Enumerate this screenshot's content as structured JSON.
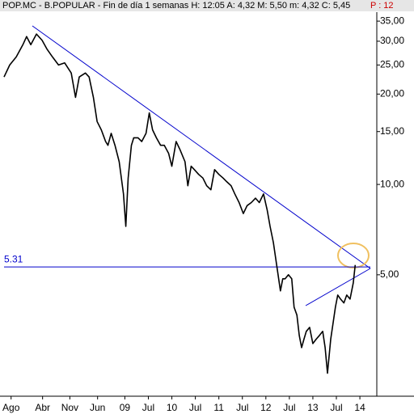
{
  "chart_data": {
    "type": "line",
    "title": "POP.MC - B.POPULAR - Fin de día 1 semanas  H: 12:05  A: 4,32  M: 5,50  m: 4,32  C: 5,45",
    "subtitle": "P : 12",
    "color": "#000000",
    "log_scale": true,
    "x": [
      2006.43,
      2006.55,
      2006.69,
      2006.83,
      2006.91,
      2007.0,
      2007.12,
      2007.24,
      2007.34,
      2007.46,
      2007.59,
      2007.72,
      2007.86,
      2007.95,
      2008.03,
      2008.16,
      2008.24,
      2008.33,
      2008.41,
      2008.5,
      2008.59,
      2008.64,
      2008.71,
      2008.79,
      2008.88,
      2008.97,
      2009.02,
      2009.07,
      2009.14,
      2009.19,
      2009.28,
      2009.36,
      2009.45,
      2009.52,
      2009.59,
      2009.67,
      2009.76,
      2009.84,
      2009.93,
      2010.0,
      2010.09,
      2010.17,
      2010.28,
      2010.34,
      2010.41,
      2010.48,
      2010.57,
      2010.66,
      2010.74,
      2010.83,
      2010.91,
      2011.0,
      2011.09,
      2011.17,
      2011.26,
      2011.34,
      2011.43,
      2011.52,
      2011.6,
      2011.69,
      2011.78,
      2011.86,
      2011.95,
      2012.03,
      2012.09,
      2012.16,
      2012.21,
      2012.26,
      2012.31,
      2012.36,
      2012.41,
      2012.48,
      2012.55,
      2012.6,
      2012.66,
      2012.71,
      2012.76,
      2012.81,
      2012.86,
      2012.93,
      2013.0,
      2013.07,
      2013.14,
      2013.21,
      2013.26,
      2013.31,
      2013.38,
      2013.43,
      2013.48,
      2013.53,
      2013.59,
      2013.66,
      2013.72,
      2013.79,
      2013.86,
      2013.9
    ],
    "values": [
      22.8,
      25.0,
      26.6,
      29.2,
      31.1,
      29.2,
      31.7,
      30.2,
      28.3,
      26.6,
      25.0,
      25.4,
      23.5,
      19.5,
      22.8,
      23.5,
      22.8,
      19.5,
      16.2,
      15.2,
      13.9,
      13.5,
      14.8,
      13.5,
      11.9,
      9.3,
      7.25,
      10.5,
      13.5,
      14.3,
      14.3,
      13.9,
      14.8,
      17.3,
      15.2,
      14.3,
      13.5,
      13.5,
      12.7,
      11.5,
      13.9,
      13.1,
      11.9,
      9.9,
      11.5,
      11.2,
      10.8,
      10.5,
      9.9,
      9.6,
      11.2,
      10.8,
      10.5,
      10.2,
      9.9,
      9.3,
      8.7,
      8.0,
      8.5,
      8.7,
      9.0,
      8.7,
      9.3,
      8.2,
      7.25,
      6.4,
      5.66,
      5.0,
      4.42,
      4.85,
      4.85,
      5.0,
      4.85,
      3.9,
      3.67,
      3.14,
      2.86,
      3.05,
      3.24,
      3.34,
      2.95,
      3.05,
      3.14,
      3.24,
      2.86,
      2.35,
      3.05,
      3.45,
      3.9,
      4.28,
      4.15,
      4.03,
      4.28,
      4.15,
      4.7,
      5.39
    ],
    "xlim": [
      2006.43,
      2014.36
    ],
    "xticks": [
      {
        "value": 2006.58,
        "label": "Ago"
      },
      {
        "value": 2007.25,
        "label": "Abr"
      },
      {
        "value": 2007.83,
        "label": "Nov"
      },
      {
        "value": 2008.42,
        "label": "Jun"
      },
      {
        "value": 2009,
        "label": "09"
      },
      {
        "value": 2009.5,
        "label": "Jul"
      },
      {
        "value": 2010,
        "label": "10"
      },
      {
        "value": 2010.5,
        "label": "Jul"
      },
      {
        "value": 2011,
        "label": "11"
      },
      {
        "value": 2011.5,
        "label": "Jul"
      },
      {
        "value": 2012,
        "label": "12"
      },
      {
        "value": 2012.5,
        "label": "Jul"
      },
      {
        "value": 2013,
        "label": "13"
      },
      {
        "value": 2013.5,
        "label": "Jul"
      },
      {
        "value": 2014,
        "label": "14"
      }
    ],
    "ylim": [
      1.97,
      37.5
    ],
    "yticks": [
      {
        "value": 35,
        "label": "35,00"
      },
      {
        "value": 30,
        "label": "30,00"
      },
      {
        "value": 25,
        "label": "25,00"
      },
      {
        "value": 20,
        "label": "20,00"
      },
      {
        "value": 15,
        "label": "15,00"
      },
      {
        "value": 10,
        "label": "10,00"
      },
      {
        "value": 5,
        "label": "5,00"
      }
    ],
    "level": 5.31,
    "level_color": "#0000cc"
  }
}
